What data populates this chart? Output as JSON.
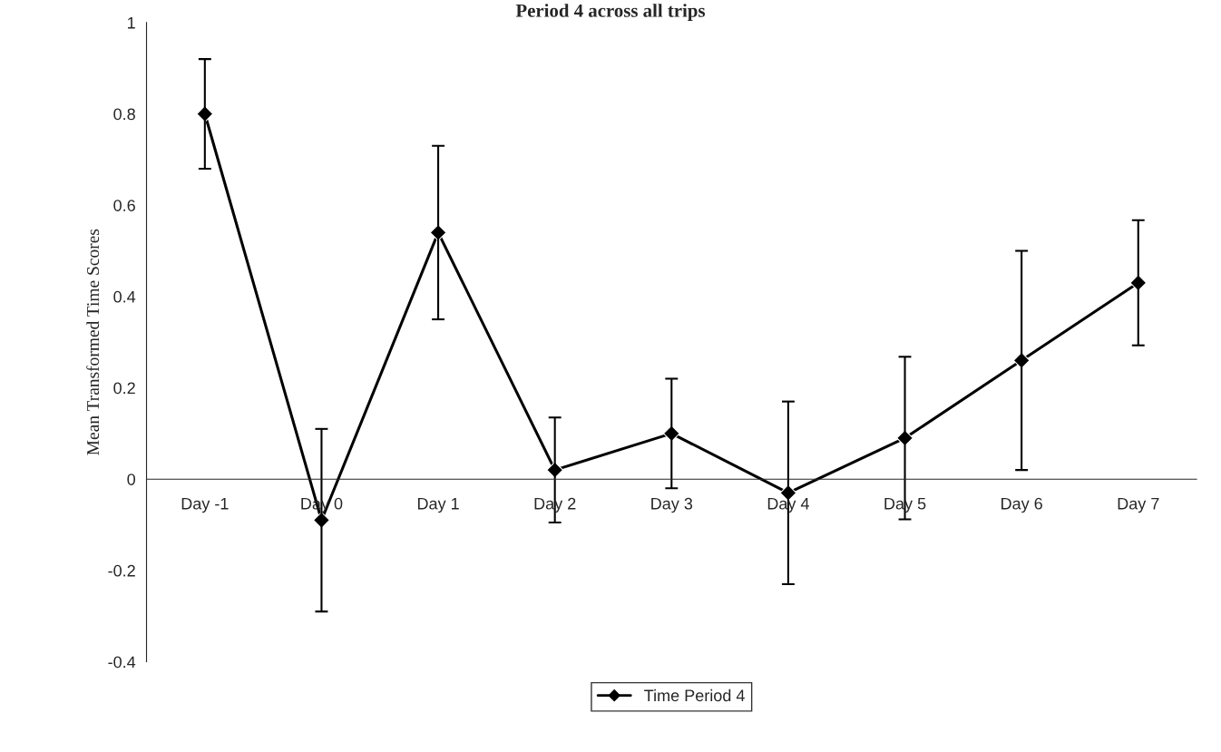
{
  "chart_data": {
    "type": "line",
    "title": "Period 4 across all trips",
    "ylabel": "Mean Transformed Time Scores",
    "categories": [
      "Day -1",
      "Day 0",
      "Day 1",
      "Day 2",
      "Day 3",
      "Day 4",
      "Day 5",
      "Day 6",
      "Day 7"
    ],
    "series": [
      {
        "name": "Time Period 4",
        "color": "#000000",
        "values": [
          0.8,
          -0.09,
          0.54,
          0.02,
          0.1,
          -0.03,
          0.09,
          0.26,
          0.43
        ],
        "errors": [
          0.12,
          0.2,
          0.19,
          0.115,
          0.12,
          0.2,
          0.178,
          0.24,
          0.137
        ]
      }
    ],
    "ylim": [
      -0.4,
      1
    ],
    "yticks": [
      -0.4,
      -0.2,
      0,
      0.2,
      0.4,
      0.6,
      0.8,
      1
    ],
    "marker": "diamond",
    "line_style": "solid",
    "grid": false,
    "legend": "bottom"
  }
}
